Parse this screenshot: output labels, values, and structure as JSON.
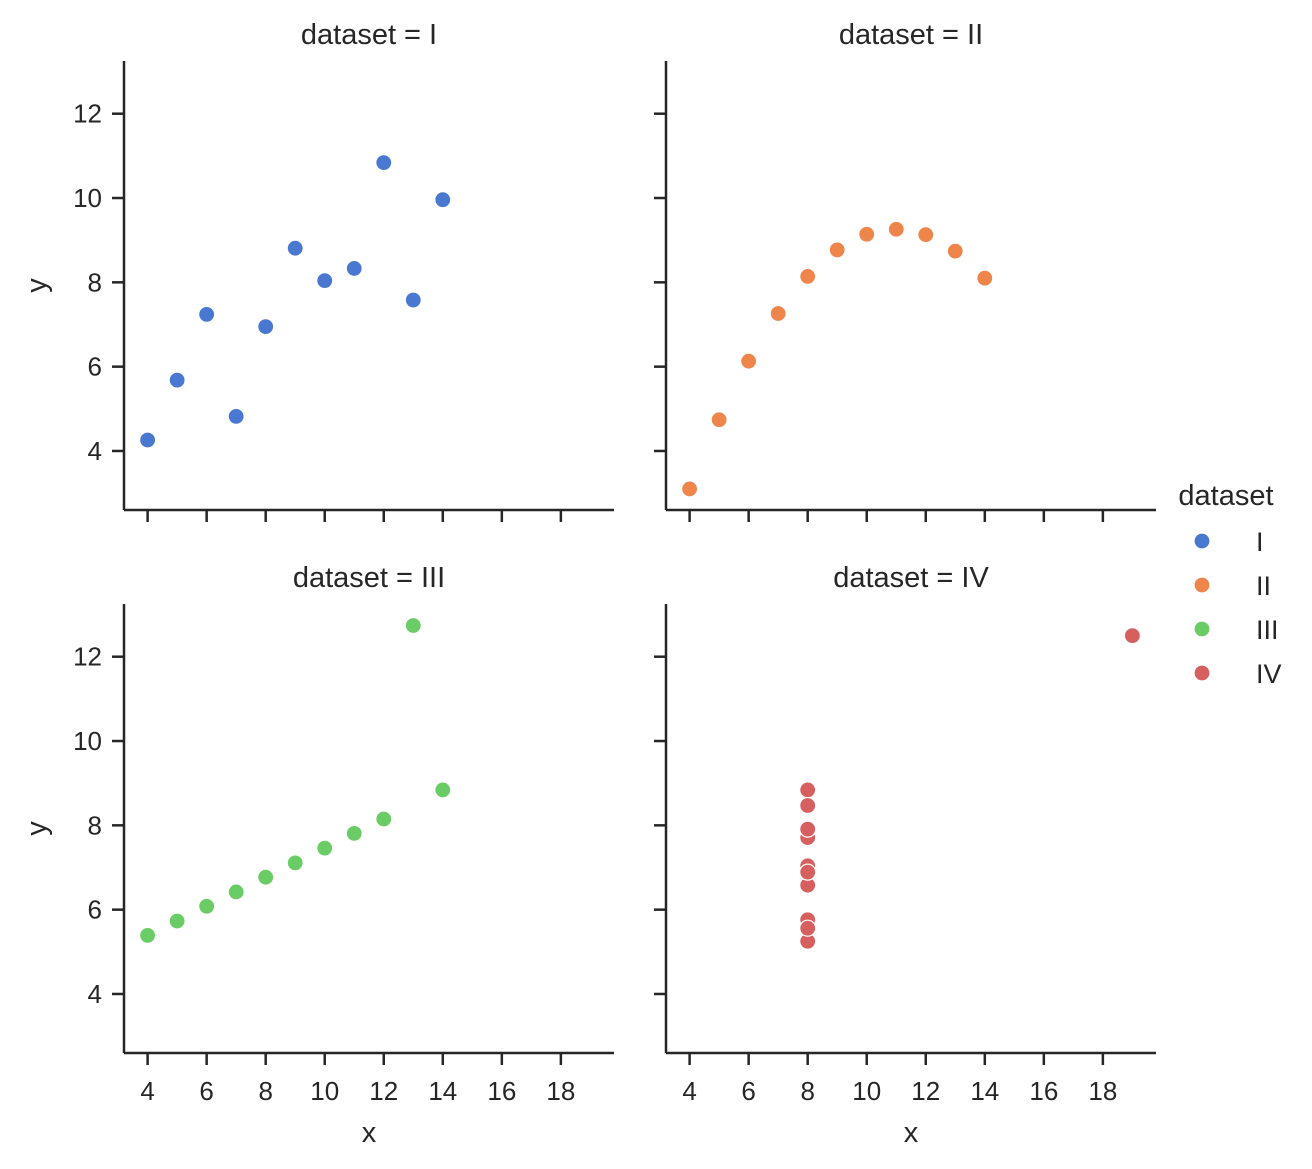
{
  "chart_data": {
    "type": "scatter",
    "facet_variable": "dataset",
    "xlabel": "x",
    "ylabel": "y",
    "xlim": [
      3.2,
      19.8
    ],
    "ylim": [
      2.6,
      13.25
    ],
    "xticks": [
      4,
      6,
      8,
      10,
      12,
      14,
      16,
      18
    ],
    "yticks": [
      4,
      6,
      8,
      10,
      12
    ],
    "grid": false,
    "legend": {
      "title": "dataset",
      "placement": "center-right",
      "entries": [
        {
          "label": "I",
          "color": "#4878d0"
        },
        {
          "label": "II",
          "color": "#ee854a"
        },
        {
          "label": "III",
          "color": "#6acc64"
        },
        {
          "label": "IV",
          "color": "#d65f5f"
        }
      ]
    },
    "panels": [
      {
        "title": "dataset = I",
        "series": "I",
        "color": "#4878d0",
        "x": [
          10,
          8,
          13,
          9,
          11,
          14,
          6,
          4,
          12,
          7,
          5
        ],
        "y": [
          8.04,
          6.95,
          7.58,
          8.81,
          8.33,
          9.96,
          7.24,
          4.26,
          10.84,
          4.82,
          5.68
        ]
      },
      {
        "title": "dataset = II",
        "series": "II",
        "color": "#ee854a",
        "x": [
          10,
          8,
          13,
          9,
          11,
          14,
          6,
          4,
          12,
          7,
          5
        ],
        "y": [
          9.14,
          8.14,
          8.74,
          8.77,
          9.26,
          8.1,
          6.13,
          3.1,
          9.13,
          7.26,
          4.74
        ]
      },
      {
        "title": "dataset = III",
        "series": "III",
        "color": "#6acc64",
        "x": [
          10,
          8,
          13,
          9,
          11,
          14,
          6,
          4,
          12,
          7,
          5
        ],
        "y": [
          7.46,
          6.77,
          12.74,
          7.11,
          7.81,
          8.84,
          6.08,
          5.39,
          8.15,
          6.42,
          5.73
        ]
      },
      {
        "title": "dataset = IV",
        "series": "IV",
        "color": "#d65f5f",
        "x": [
          8,
          8,
          8,
          8,
          8,
          8,
          8,
          19,
          8,
          8,
          8
        ],
        "y": [
          6.58,
          5.76,
          7.71,
          8.84,
          8.47,
          7.04,
          5.25,
          12.5,
          5.56,
          7.91,
          6.89
        ]
      }
    ]
  }
}
